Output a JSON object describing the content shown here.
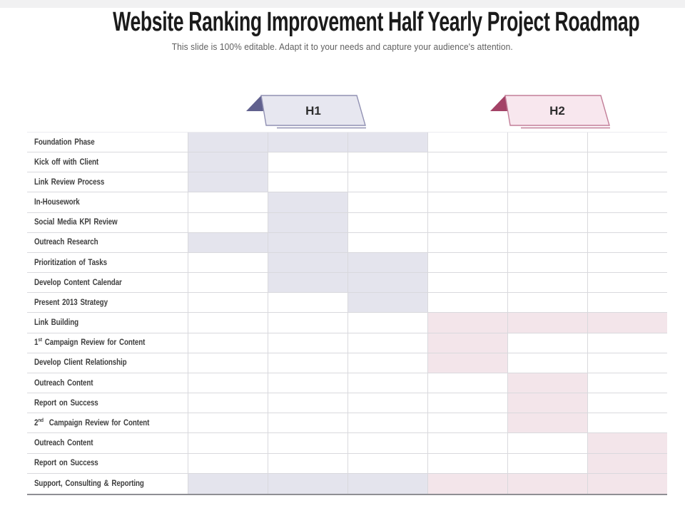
{
  "slide": {
    "title": "Website Ranking Improvement Half Yearly Project Roadmap",
    "subtitle": "This slide is 100% editable. Adapt it to your needs and capture your audience's attention."
  },
  "roadmap": {
    "type": "gantt",
    "columns_per_half": 3,
    "halves": [
      {
        "label": "H1",
        "plate": "#e7e7f0",
        "border": "#9191b3",
        "fold": "#61618e",
        "cell": "#e4e4ed"
      },
      {
        "label": "H2",
        "plate": "#f8e7ee",
        "border": "#c27e98",
        "fold": "#a34266",
        "cell": "#f3e5ea"
      }
    ],
    "tasks": [
      {
        "prefix": "Foundation Phase",
        "sup": "",
        "suffix": "",
        "cells": [
          1,
          1,
          1,
          0,
          0,
          0
        ]
      },
      {
        "prefix": "Kick off with Client",
        "sup": "",
        "suffix": "",
        "cells": [
          1,
          0,
          0,
          0,
          0,
          0
        ]
      },
      {
        "prefix": "Link Review Process",
        "sup": "",
        "suffix": "",
        "cells": [
          1,
          0,
          0,
          0,
          0,
          0
        ]
      },
      {
        "prefix": "In-Housework",
        "sup": "",
        "suffix": "",
        "cells": [
          0,
          1,
          0,
          0,
          0,
          0
        ]
      },
      {
        "prefix": "Social Media KPI Review",
        "sup": "",
        "suffix": "",
        "cells": [
          0,
          1,
          0,
          0,
          0,
          0
        ]
      },
      {
        "prefix": "Outreach Research",
        "sup": "",
        "suffix": "",
        "cells": [
          1,
          1,
          0,
          0,
          0,
          0
        ]
      },
      {
        "prefix": "Prioritization of Tasks",
        "sup": "",
        "suffix": "",
        "cells": [
          0,
          1,
          1,
          0,
          0,
          0
        ]
      },
      {
        "prefix": "Develop Content Calendar",
        "sup": "",
        "suffix": "",
        "cells": [
          0,
          1,
          1,
          0,
          0,
          0
        ]
      },
      {
        "prefix": "Present 2013 Strategy",
        "sup": "",
        "suffix": "",
        "cells": [
          0,
          0,
          1,
          0,
          0,
          0
        ]
      },
      {
        "prefix": "Link Building",
        "sup": "",
        "suffix": "",
        "cells": [
          0,
          0,
          0,
          1,
          1,
          1
        ]
      },
      {
        "prefix": "1",
        "sup": "st",
        "suffix": " Campaign Review for Content",
        "cells": [
          0,
          0,
          0,
          1,
          0,
          0
        ]
      },
      {
        "prefix": "Develop Client Relationship",
        "sup": "",
        "suffix": "",
        "cells": [
          0,
          0,
          0,
          1,
          0,
          0
        ]
      },
      {
        "prefix": "Outreach Content",
        "sup": "",
        "suffix": "",
        "cells": [
          0,
          0,
          0,
          0,
          1,
          0
        ]
      },
      {
        "prefix": "Report on Success",
        "sup": "",
        "suffix": "",
        "cells": [
          0,
          0,
          0,
          0,
          1,
          0
        ]
      },
      {
        "prefix": "2",
        "sup": "nd",
        "suffix": "  Campaign Review for Content",
        "cells": [
          0,
          0,
          0,
          0,
          1,
          0
        ]
      },
      {
        "prefix": "Outreach Content",
        "sup": "",
        "suffix": "",
        "cells": [
          0,
          0,
          0,
          0,
          0,
          1
        ]
      },
      {
        "prefix": "Report on Success",
        "sup": "",
        "suffix": "",
        "cells": [
          0,
          0,
          0,
          0,
          0,
          1
        ]
      },
      {
        "prefix": "Support, Consulting & Reporting",
        "sup": "",
        "suffix": "",
        "cells": [
          1,
          1,
          1,
          1,
          1,
          1
        ]
      }
    ]
  },
  "colors": {
    "top_strip": "#f1f1f2",
    "grid_line": "#d9d9dd",
    "grid_bottom": "#8f8f94",
    "title_text": "#1b1b1b",
    "subtitle_text": "#5f5f5f",
    "label_text": "#3e3e3e"
  }
}
